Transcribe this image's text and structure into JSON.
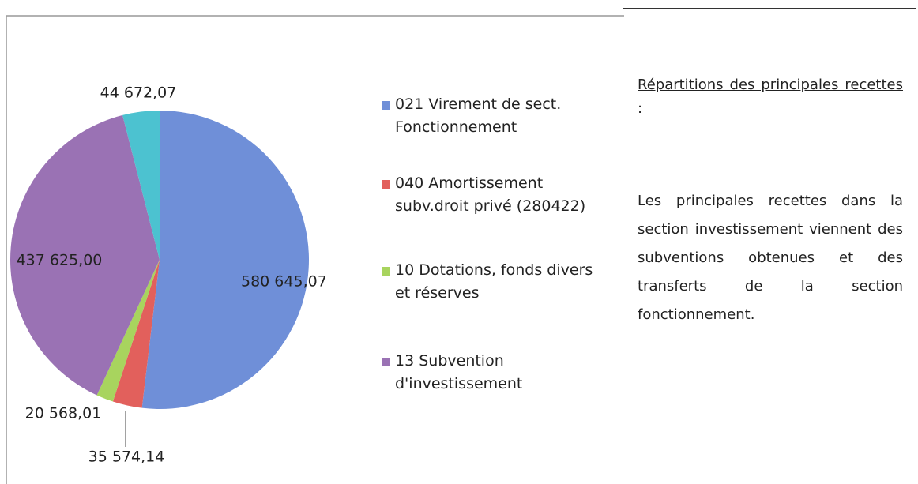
{
  "chart_data": {
    "type": "pie",
    "categories": [
      "021 Virement de sect. Fonctionnement",
      "040 Amortissement subv.droit privé (280422)",
      "10 Dotations, fonds divers et réserves",
      "13 Subvention d'investissement",
      null
    ],
    "values": [
      580645.07,
      35574.14,
      20568.01,
      437625.0,
      44672.07
    ],
    "value_labels": [
      "580 645,07",
      "35 574,14",
      "20 568,01",
      "437 625,00",
      "44 672,07"
    ],
    "colors": [
      "#6f8fd8",
      "#e2605c",
      "#a8d45e",
      "#9a72b4",
      "#4cc2d0"
    ],
    "legend": "right"
  },
  "text_box": {
    "heading": "Répartitions des principales recettes",
    "heading_suffix": ":",
    "body": "Les principales recettes dans la section investissement viennent des subventions obtenues et des transferts de la section fonctionnement."
  }
}
